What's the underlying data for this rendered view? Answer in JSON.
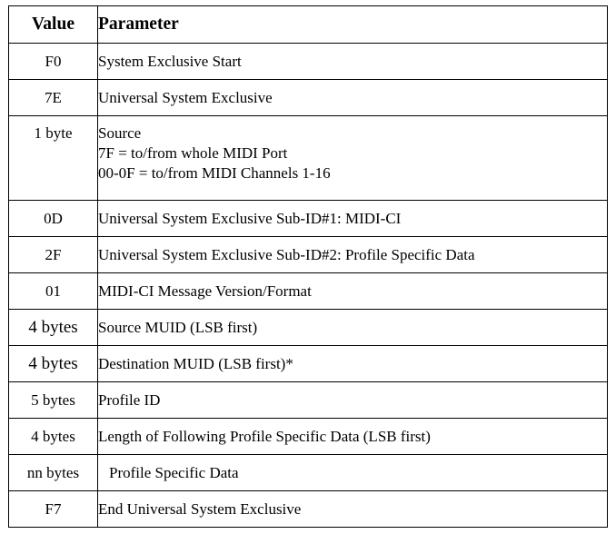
{
  "table": {
    "headers": {
      "value": "Value",
      "parameter": "Parameter"
    },
    "rows": [
      {
        "value": "F0",
        "parameter": "System Exclusive Start"
      },
      {
        "value": "7E",
        "parameter": "Universal System Exclusive"
      },
      {
        "value": "1 byte",
        "parameter": "Source",
        "notes": [
          "7F = to/from whole MIDI Port",
          "00-0F = to/from MIDI Channels 1-16"
        ]
      },
      {
        "value": "0D",
        "parameter": "Universal System Exclusive Sub-ID#1: MIDI-CI"
      },
      {
        "value": "2F",
        "parameter": "Universal System Exclusive Sub-ID#2: Profile Specific Data"
      },
      {
        "value": "01",
        "parameter": "MIDI-CI Message Version/Format"
      },
      {
        "value": "4 bytes",
        "parameter": "Source MUID (LSB first)"
      },
      {
        "value": "4 bytes",
        "parameter": "Destination MUID (LSB first)*"
      },
      {
        "value": "5 bytes",
        "parameter": "Profile ID"
      },
      {
        "value": "4 bytes",
        "parameter": "Length of Following Profile Specific Data (LSB first)"
      },
      {
        "value": "nn bytes",
        "parameter": "Profile Specific Data"
      },
      {
        "value": "F7",
        "parameter": "End Universal System Exclusive"
      }
    ]
  }
}
